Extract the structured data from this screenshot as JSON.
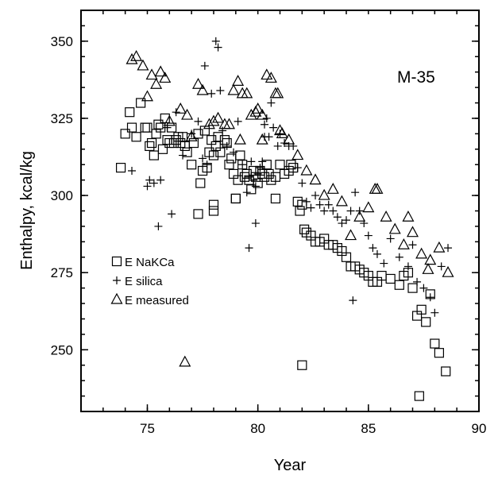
{
  "chart_data": {
    "type": "scatter",
    "title": "",
    "annotation": "M-35",
    "xlabel": "Year",
    "ylabel": "Enthalpy, kcal/kg",
    "xlim": [
      72,
      90
    ],
    "ylim": [
      230,
      360
    ],
    "xticks": [
      75,
      80,
      85,
      90
    ],
    "yticks": [
      250,
      275,
      300,
      325,
      350
    ],
    "grid": false,
    "legend_position": "lower-left",
    "series": [
      {
        "name": "E NaKCa",
        "marker": "square",
        "x": [
          73.8,
          74.0,
          74.2,
          74.3,
          74.5,
          74.7,
          74.9,
          75.0,
          75.1,
          75.2,
          75.3,
          75.4,
          75.5,
          75.6,
          75.7,
          75.8,
          75.9,
          76.0,
          76.1,
          76.2,
          76.3,
          76.4,
          76.5,
          76.6,
          76.7,
          76.8,
          77.0,
          77.1,
          77.3,
          77.4,
          77.5,
          77.6,
          77.7,
          77.8,
          77.9,
          78.0,
          78.1,
          78.2,
          78.3,
          78.5,
          78.6,
          78.7,
          78.8,
          78.9,
          79.0,
          79.1,
          79.2,
          79.3,
          79.4,
          79.5,
          79.6,
          79.7,
          79.8,
          79.9,
          80.0,
          80.1,
          80.2,
          80.3,
          80.4,
          80.5,
          80.6,
          80.8,
          81.0,
          81.2,
          81.4,
          81.6,
          81.8,
          81.9,
          82.0,
          82.1,
          82.2,
          82.4,
          82.6,
          82.8,
          83.0,
          83.2,
          83.4,
          83.6,
          83.8,
          84.0,
          84.2,
          84.4,
          84.6,
          84.8,
          85.0,
          85.2,
          85.4,
          85.6,
          86.0,
          86.4,
          86.6,
          86.8,
          87.0,
          87.2,
          87.4,
          87.6,
          87.8,
          88.0,
          88.2,
          88.5,
          87.3,
          82.0,
          78.0,
          78.0,
          79.0,
          77.3,
          80.8,
          81.5
        ],
        "y": [
          309,
          320,
          327,
          322,
          319,
          330,
          322,
          322,
          316,
          317,
          313,
          320,
          323,
          322,
          315,
          325,
          318,
          317,
          322,
          317,
          318,
          319,
          317,
          319,
          316,
          314,
          310,
          317,
          320,
          304,
          308,
          321,
          309,
          314,
          318,
          313,
          316,
          319,
          314,
          318,
          317,
          310,
          312,
          307,
          299,
          305,
          313,
          310,
          306,
          307,
          305,
          302,
          308,
          306,
          304,
          308,
          307,
          306,
          310,
          307,
          305,
          306,
          310,
          307,
          308,
          309,
          298,
          295,
          297,
          289,
          288,
          287,
          285,
          285,
          286,
          284,
          284,
          283,
          282,
          280,
          277,
          277,
          276,
          275,
          274,
          272,
          272,
          274,
          273,
          271,
          274,
          275,
          270,
          261,
          263,
          259,
          268,
          252,
          249,
          243,
          235,
          245,
          295,
          297,
          299,
          294,
          299,
          310
        ]
      },
      {
        "name": "E silica",
        "marker": "plus",
        "x": [
          74.3,
          75.0,
          75.3,
          75.5,
          75.6,
          75.9,
          76.1,
          76.3,
          76.6,
          77.0,
          77.3,
          77.6,
          77.7,
          77.9,
          78.1,
          78.2,
          78.3,
          78.4,
          78.6,
          78.9,
          79.1,
          79.3,
          79.5,
          79.6,
          79.7,
          79.8,
          79.9,
          80.0,
          80.1,
          80.2,
          80.3,
          80.4,
          80.5,
          80.6,
          80.7,
          80.9,
          81.0,
          81.2,
          81.4,
          81.6,
          81.8,
          82.0,
          82.2,
          82.4,
          82.6,
          82.8,
          83.0,
          83.2,
          83.4,
          83.6,
          83.8,
          84.0,
          84.2,
          84.4,
          84.6,
          84.8,
          85.0,
          85.2,
          85.4,
          85.7,
          86.0,
          86.4,
          86.8,
          87.0,
          87.2,
          87.5,
          87.8,
          88.0,
          88.3,
          88.6,
          75.1,
          77.5,
          79.6,
          79.9,
          80.3,
          84.3
        ],
        "y": [
          308,
          303,
          304,
          290,
          305,
          322,
          294,
          327,
          313,
          320,
          324,
          342,
          310,
          333,
          350,
          348,
          334,
          321,
          316,
          314,
          324,
          310,
          301,
          306,
          311,
          305,
          303,
          307,
          309,
          311,
          319,
          325,
          319,
          330,
          322,
          316,
          320,
          317,
          316,
          316,
          309,
          304,
          298,
          296,
          300,
          297,
          295,
          297,
          295,
          293,
          291,
          292,
          295,
          301,
          295,
          291,
          287,
          283,
          281,
          278,
          286,
          280,
          277,
          284,
          272,
          270,
          267,
          262,
          277,
          283,
          305,
          312,
          283,
          291,
          323,
          266
        ]
      },
      {
        "name": "E measured",
        "marker": "triangle",
        "x": [
          74.3,
          74.5,
          74.8,
          75.0,
          75.2,
          75.4,
          75.6,
          75.8,
          76.0,
          76.5,
          76.8,
          77.0,
          77.3,
          77.5,
          77.8,
          78.0,
          78.2,
          78.5,
          78.7,
          78.9,
          79.1,
          79.3,
          79.5,
          79.7,
          79.9,
          80.0,
          80.2,
          80.4,
          80.6,
          80.8,
          81.0,
          81.4,
          81.8,
          82.2,
          82.6,
          83.0,
          83.4,
          83.8,
          84.2,
          84.6,
          85.0,
          85.4,
          85.8,
          86.2,
          86.6,
          87.0,
          87.4,
          87.8,
          88.2,
          88.6,
          76.7,
          79.2,
          80.9,
          85.3,
          86.8,
          87.7,
          81.1,
          80.2
        ],
        "y": [
          344,
          345,
          342,
          332,
          339,
          336,
          340,
          338,
          324,
          328,
          326,
          319,
          336,
          334,
          323,
          324,
          325,
          323,
          323,
          334,
          337,
          333,
          333,
          326,
          327,
          328,
          326,
          339,
          338,
          333,
          321,
          318,
          313,
          308,
          305,
          300,
          302,
          298,
          287,
          293,
          296,
          302,
          293,
          289,
          284,
          288,
          281,
          279,
          283,
          275,
          246,
          318,
          333,
          302,
          293,
          276,
          320,
          318
        ]
      }
    ]
  }
}
